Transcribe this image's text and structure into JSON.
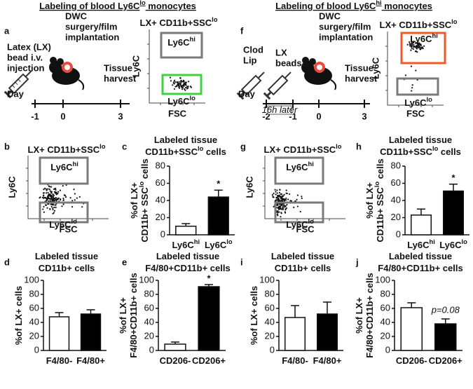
{
  "headers": [
    [
      {
        "t": "Labeling of blood Ly6C"
      },
      {
        "sup": "lo"
      },
      {
        "t": " monocytes"
      }
    ],
    [
      {
        "t": "Labeling of blood Ly6C"
      },
      {
        "sup": "hi"
      },
      {
        "t": " monocytes"
      }
    ]
  ],
  "panel_letters": [
    "a",
    "b",
    "c",
    "d",
    "e",
    "f",
    "g",
    "h",
    "i",
    "j"
  ],
  "timelines": [
    {
      "axis_label": "Day",
      "days": [
        "-1",
        "0",
        "3"
      ],
      "events": [
        [
          "Latex (LX)",
          "bead i.v.",
          "injection"
        ],
        [
          "DWC",
          "surgery/film",
          "implantation"
        ],
        [
          "Tissue",
          "harvest"
        ]
      ]
    },
    {
      "axis_label": "Day",
      "days": [
        "-2",
        "-1",
        "0",
        "3"
      ],
      "interval_note": "16h later",
      "events": [
        [
          "Clod",
          "Lip"
        ],
        [
          "LX",
          "beads"
        ],
        [
          "DWC",
          "surgery/film",
          "implantation"
        ],
        [
          "Tissue",
          "harvest"
        ]
      ]
    }
  ],
  "flow_plots": [
    {
      "title": [
        {
          "t": "LX+ CD11b+SSC"
        },
        {
          "sup": "lo"
        }
      ],
      "title_color": "#3fd23f",
      "x_label": "FSC",
      "y_label": "Ly6C",
      "gates": [
        {
          "label": [
            {
              "t": "Ly6C"
            },
            {
              "sup": "hi"
            }
          ],
          "color": "#7a7a7a"
        },
        {
          "label": [
            {
              "t": "Ly6C"
            },
            {
              "sup": "lo"
            }
          ],
          "color": "#3fd23f"
        }
      ]
    },
    {
      "title": [
        {
          "t": "LX+ CD11b+SSC"
        },
        {
          "sup": "lo"
        }
      ],
      "title_color": "#f05a28",
      "x_label": "FSC",
      "y_label": "Ly6C",
      "gates": [
        {
          "label": [
            {
              "t": "Ly6C"
            },
            {
              "sup": "hi"
            }
          ],
          "color": "#f05a28"
        },
        {
          "label": [
            {
              "t": "Ly6C"
            },
            {
              "sup": "lo"
            }
          ],
          "color": "#7a7a7a"
        }
      ]
    },
    {
      "title": [
        {
          "t": "LX+ CD11b+SSC"
        },
        {
          "sup": "lo"
        }
      ],
      "title_color": "#111111",
      "x_label": "FSC",
      "y_label": "Ly6C",
      "gates": [
        {
          "label": [
            {
              "t": "Ly6C"
            },
            {
              "sup": "hi"
            }
          ],
          "color": "#7a7a7a"
        },
        {
          "label": [
            {
              "t": "Ly6C"
            },
            {
              "sup": "lo"
            }
          ],
          "color": "#7a7a7a"
        }
      ]
    },
    {
      "title": [
        {
          "t": "LX+ CD11b+SSC"
        },
        {
          "sup": "lo"
        }
      ],
      "title_color": "#111111",
      "x_label": "FSC",
      "y_label": "Ly6C",
      "gates": [
        {
          "label": [
            {
              "t": "Ly6C"
            },
            {
              "sup": "hi"
            }
          ],
          "color": "#7a7a7a"
        },
        {
          "label": [
            {
              "t": "Ly6C"
            },
            {
              "sup": "lo"
            }
          ],
          "color": "#7a7a7a"
        }
      ]
    }
  ],
  "chart_data": [
    {
      "type": "bar",
      "title": [
        [
          {
            "t": "Labeled tissue"
          }
        ],
        [
          {
            "t": "CD11b+SSC"
          },
          {
            "sup": "lo"
          },
          {
            "t": " cells"
          }
        ]
      ],
      "y_label": [
        [
          {
            "t": "%of LX+"
          }
        ],
        [
          {
            "t": "CD11b+ SSC"
          },
          {
            "sup": "lo"
          },
          {
            "t": " cells"
          }
        ]
      ],
      "categories": [
        "Ly6C",
        "Ly6C"
      ],
      "category_sups": [
        "hi",
        "lo"
      ],
      "values": [
        10,
        44
      ],
      "errors": [
        3,
        8
      ],
      "colors": [
        "#ffffff",
        "#000000"
      ],
      "ylim": [
        0,
        80
      ],
      "yticks": [
        0,
        20,
        40,
        60,
        80
      ],
      "annotation": "*"
    },
    {
      "type": "bar",
      "title": [
        [
          {
            "t": "Labeled tissue"
          }
        ],
        [
          {
            "t": "CD11b+ cells"
          }
        ]
      ],
      "y_label": [
        [
          {
            "t": "%of LX+ cells"
          }
        ]
      ],
      "categories": [
        "F4/80-",
        "F4/80+"
      ],
      "values": [
        48,
        52
      ],
      "errors": [
        6,
        6
      ],
      "colors": [
        "#ffffff",
        "#000000"
      ],
      "ylim": [
        0,
        100
      ],
      "yticks": [
        0,
        20,
        40,
        60,
        80,
        100
      ]
    },
    {
      "type": "bar",
      "title": [
        [
          {
            "t": "Labeled tissue"
          }
        ],
        [
          {
            "t": "F4/80+CD11b+ cells"
          }
        ]
      ],
      "y_label": [
        [
          {
            "t": "%of LX+"
          }
        ],
        [
          {
            "t": "F4/80+CD11b+ cells"
          }
        ]
      ],
      "categories": [
        "CD206-",
        "CD206+"
      ],
      "values": [
        9,
        91
      ],
      "errors": [
        3,
        3
      ],
      "colors": [
        "#ffffff",
        "#000000"
      ],
      "ylim": [
        0,
        100
      ],
      "yticks": [
        0,
        20,
        40,
        60,
        80,
        100
      ],
      "annotation": "*"
    },
    {
      "type": "bar",
      "title": [
        [
          {
            "t": "Labeled tissue"
          }
        ],
        [
          {
            "t": "CD11b+SSC"
          },
          {
            "sup": "lo"
          },
          {
            "t": " cells"
          }
        ]
      ],
      "y_label": [
        [
          {
            "t": "%of LX+"
          }
        ],
        [
          {
            "t": "CD11b+ SSC"
          },
          {
            "sup": "lo"
          },
          {
            "t": " cells"
          }
        ]
      ],
      "categories": [
        "Ly6C",
        "Ly6C"
      ],
      "category_sups": [
        "hi",
        "lo"
      ],
      "values": [
        23,
        51
      ],
      "errors": [
        7,
        8
      ],
      "colors": [
        "#ffffff",
        "#000000"
      ],
      "ylim": [
        0,
        80
      ],
      "yticks": [
        0,
        20,
        40,
        60,
        80
      ],
      "annotation": "*"
    },
    {
      "type": "bar",
      "title": [
        [
          {
            "t": "Labeled tissue"
          }
        ],
        [
          {
            "t": "CD11b+ cells"
          }
        ]
      ],
      "y_label": [
        [
          {
            "t": "%of LX+ cells"
          }
        ]
      ],
      "categories": [
        "F4/80-",
        "F4/80+"
      ],
      "values": [
        47,
        52
      ],
      "errors": [
        17,
        17
      ],
      "colors": [
        "#ffffff",
        "#000000"
      ],
      "ylim": [
        0,
        100
      ],
      "yticks": [
        0,
        20,
        40,
        60,
        80,
        100
      ]
    },
    {
      "type": "bar",
      "title": [
        [
          {
            "t": "Labeled tissue"
          }
        ],
        [
          {
            "t": "F4/80+CD11b+ cells"
          }
        ]
      ],
      "y_label": [
        [
          {
            "t": "%of LX+"
          }
        ],
        [
          {
            "t": "F4/80+CD11b+ cells"
          }
        ]
      ],
      "categories": [
        "CD206-",
        "CD206+"
      ],
      "values": [
        61,
        38
      ],
      "errors": [
        7,
        7
      ],
      "colors": [
        "#ffffff",
        "#000000"
      ],
      "ylim": [
        0,
        100
      ],
      "yticks": [
        0,
        20,
        40,
        60,
        80,
        100
      ],
      "annotation": "p=0.08"
    }
  ]
}
